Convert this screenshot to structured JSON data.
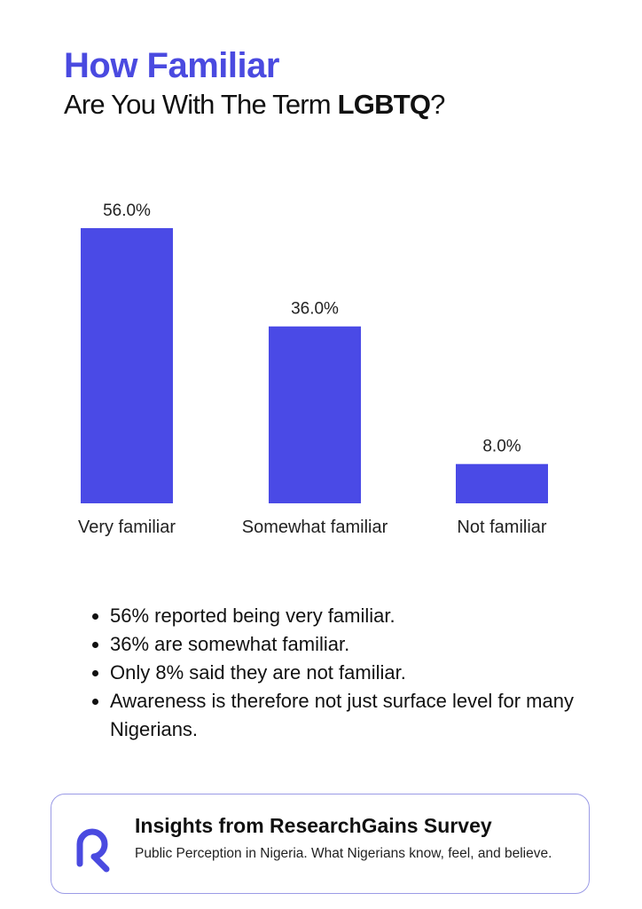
{
  "header": {
    "title_line1": "How Familiar",
    "title_line2_prefix": "Are You With The Term ",
    "title_line2_bold": "LGBTQ",
    "title_line2_suffix": "?"
  },
  "chart_data": {
    "type": "bar",
    "categories": [
      "Very familiar",
      "Somewhat familiar",
      "Not familiar"
    ],
    "values": [
      56.0,
      36.0,
      8.0
    ],
    "value_labels": [
      "56.0%",
      "36.0%",
      "8.0%"
    ],
    "unit": "%",
    "ylim": [
      0,
      56
    ],
    "grid": false,
    "bar_color": "#4a4ae6"
  },
  "bullets": [
    "56% reported being very familiar.",
    "36% are somewhat familiar.",
    "Only 8% said they are not familiar.",
    "Awareness is therefore not just surface level for many Nigerians."
  ],
  "footer": {
    "logo_icon": "researchgains-logo-icon",
    "title": "Insights from ResearchGains Survey",
    "subtitle": "Public Perception in Nigeria. What Nigerians know, feel, and believe.",
    "accent_color": "#4a4ae0"
  }
}
